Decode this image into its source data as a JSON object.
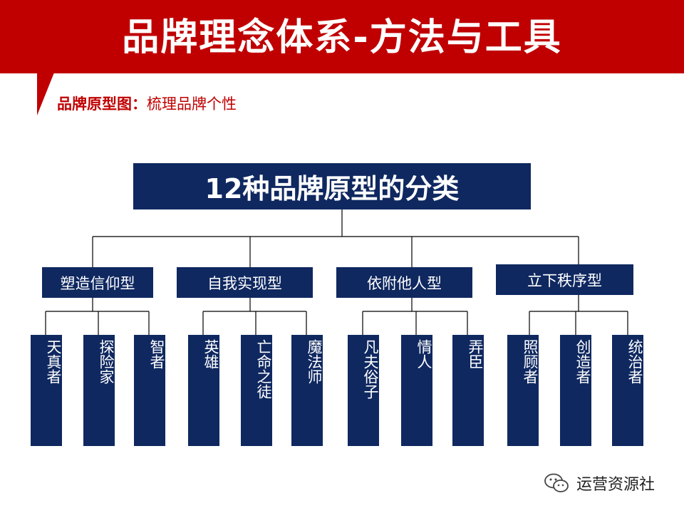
{
  "header": {
    "title": "品牌理念体系-方法与工具"
  },
  "subtitle": {
    "prefix": "品牌原型图：",
    "text": "梳理品牌个性"
  },
  "root": {
    "label": "12种品牌原型的分类"
  },
  "categories": [
    {
      "label": "塑造信仰型",
      "leaves": [
        "天真者",
        "探险家",
        "智者"
      ]
    },
    {
      "label": "自我实现型",
      "leaves": [
        "英雄",
        "亡命之徒",
        "魔法师"
      ]
    },
    {
      "label": "依附他人型",
      "leaves": [
        "凡夫俗子",
        "情人",
        "弄臣"
      ]
    },
    {
      "label": "立下秩序型",
      "leaves": [
        "照顾者",
        "创造者",
        "统治者"
      ]
    }
  ],
  "watermark": {
    "icon": "wechat-icon",
    "text": "运营资源社"
  },
  "colors": {
    "banner": "#c00000",
    "box": "#0f2860",
    "line": "#000000"
  }
}
